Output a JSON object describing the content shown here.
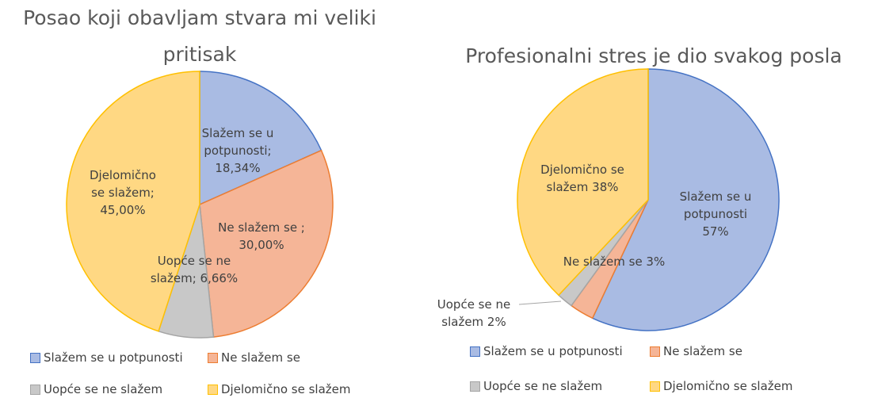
{
  "chart_data": [
    {
      "type": "pie",
      "title": "Posao koji obavljam stvara mi veliki pritisak",
      "categories": [
        "Slažem se u potpunosti",
        "Ne slažem se",
        "Uopće se ne slažem",
        "Djelomično se slažem"
      ],
      "values": [
        18.34,
        30.0,
        6.66,
        45.0
      ],
      "value_labels": [
        "Slažem se u potpunosti; 18,34%",
        "Ne slažem se ; 30,00%",
        "Uopće se ne slažem; 6,66%",
        "Djelomično se slažem; 45,00%"
      ],
      "colors": [
        "#a9bbe3",
        "#f5b597",
        "#c8c8c8",
        "#ffd883"
      ],
      "legend": "bottom"
    },
    {
      "type": "pie",
      "title": "Profesionalni stres je dio svakog posla",
      "categories": [
        "Slažem se u potpunosti",
        "Ne slažem se",
        "Uopće se ne slažem",
        "Djelomično se slažem"
      ],
      "values": [
        57,
        3,
        2,
        38
      ],
      "value_labels": [
        "Slažem se u potpunosti 57%",
        "Ne slažem se 3%",
        "Uopće se ne slažem 2%",
        "Djelomično se slažem 38%"
      ],
      "colors": [
        "#a9bbe3",
        "#f5b597",
        "#c8c8c8",
        "#ffd883"
      ],
      "legend": "bottom"
    }
  ]
}
